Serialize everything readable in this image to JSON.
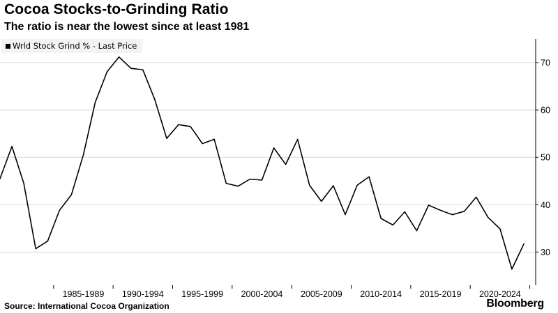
{
  "header": {
    "title": "Cocoa Stocks-to-Grinding Ratio",
    "subtitle": "The ratio is near the lowest since at least 1981"
  },
  "footer": {
    "source": "Source: International Cocoa Organization",
    "brand": "Bloomberg"
  },
  "colors": {
    "line": "#000000",
    "grid": "#d9d9d9",
    "legend_bg": "#f3f3f3"
  },
  "chart_data": {
    "type": "line",
    "title": "Cocoa Stocks-to-Grinding Ratio",
    "subtitle": "The ratio is near the lowest since at least 1981",
    "legend": [
      "Wrld Stock Grind % - Last Price"
    ],
    "legend_position": "top-left",
    "grid": "horizontal",
    "y_axis_side": "right",
    "ylim": [
      23,
      75
    ],
    "yticks": [
      30,
      40,
      50,
      60,
      70
    ],
    "xlim": [
      1980.5,
      2025.5
    ],
    "xtick_labels": [
      "1985-1989",
      "1990-1994",
      "1995-1999",
      "2000-2004",
      "2005-2009",
      "2010-2014",
      "2015-2019",
      "2020-2024"
    ],
    "series": [
      {
        "name": "Wrld Stock Grind % - Last Price",
        "x": [
          1980,
          1981,
          1982,
          1983,
          1984,
          1985,
          1986,
          1987,
          1988,
          1989,
          1990,
          1991,
          1992,
          1993,
          1994,
          1995,
          1996,
          1997,
          1998,
          1999,
          2000,
          2001,
          2002,
          2003,
          2004,
          2005,
          2006,
          2007,
          2008,
          2009,
          2010,
          2011,
          2012,
          2013,
          2014,
          2015,
          2016,
          2017,
          2018,
          2019,
          2020,
          2021,
          2022,
          2023,
          2024
        ],
        "values": [
          45.5,
          52.3,
          44.5,
          30.7,
          32.3,
          38.8,
          42.1,
          50.5,
          61.6,
          68.1,
          71.2,
          68.8,
          68.5,
          62.2,
          54.0,
          56.9,
          56.5,
          52.9,
          53.8,
          44.5,
          43.9,
          45.4,
          45.2,
          52.0,
          48.5,
          53.8,
          44.1,
          40.7,
          44.0,
          37.9,
          44.1,
          45.9,
          37.1,
          35.7,
          38.5,
          34.5,
          39.9,
          38.8,
          37.9,
          38.6,
          41.6,
          37.3,
          34.9,
          26.4,
          31.7
        ]
      }
    ]
  }
}
